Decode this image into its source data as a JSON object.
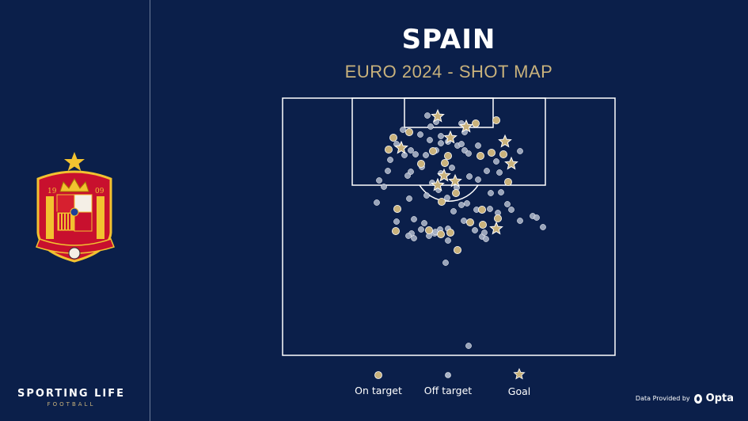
{
  "title": "SPAIN",
  "subtitle": "EURO 2024 - SHOT MAP",
  "branding": {
    "main": "SPORTING LIFE",
    "sub": "FOOTBALL"
  },
  "crest": {
    "year_left": "19",
    "year_right": "09"
  },
  "credit": {
    "prefix": "Data Provided by",
    "brand": "Opta"
  },
  "colors": {
    "background": "#0b1f4a",
    "on_target": "#c9b27c",
    "off_target": "#a9b3c7",
    "goal": "#c9b27c",
    "pitch_lines": "#ffffff"
  },
  "chart_data": {
    "type": "scatter",
    "title": "SPAIN",
    "subtitle": "EURO 2024 - SHOT MAP",
    "xlim": [
      0,
      420
    ],
    "ylim": [
      0,
      325
    ],
    "legend": [
      {
        "key": "on_target",
        "label": "On target",
        "marker": "circle"
      },
      {
        "key": "off_target",
        "label": "Off target",
        "marker": "circle"
      },
      {
        "key": "goal",
        "label": "Goal",
        "marker": "star"
      }
    ],
    "legend_position": "bottom",
    "series": [
      {
        "key": "goal",
        "name": "Goal",
        "points": [
          [
            196,
            23
          ],
          [
            232,
            36
          ],
          [
            212,
            50
          ],
          [
            281,
            55
          ],
          [
            150,
            63
          ],
          [
            289,
            83
          ],
          [
            204,
            98
          ],
          [
            218,
            105
          ],
          [
            196,
            110
          ],
          [
            270,
            165
          ]
        ]
      },
      {
        "key": "on_target",
        "name": "On target",
        "points": [
          [
            160,
            43
          ],
          [
            244,
            32
          ],
          [
            270,
            28
          ],
          [
            140,
            50
          ],
          [
            134,
            65
          ],
          [
            190,
            67
          ],
          [
            205,
            82
          ],
          [
            250,
            73
          ],
          [
            264,
            69
          ],
          [
            279,
            71
          ],
          [
            209,
            73
          ],
          [
            175,
            83
          ],
          [
            285,
            106
          ],
          [
            201,
            131
          ],
          [
            219,
            120
          ],
          [
            145,
            140
          ],
          [
            252,
            141
          ],
          [
            272,
            152
          ],
          [
            237,
            157
          ],
          [
            253,
            160
          ],
          [
            212,
            170
          ],
          [
            200,
            172
          ],
          [
            185,
            167
          ],
          [
            143,
            168
          ],
          [
            221,
            192
          ]
        ]
      },
      {
        "key": "off_target",
        "name": "Off target",
        "points": [
          [
            183,
            22
          ],
          [
            194,
            30
          ],
          [
            187,
            36
          ],
          [
            226,
            32
          ],
          [
            230,
            43
          ],
          [
            152,
            40
          ],
          [
            174,
            46
          ],
          [
            200,
            57
          ],
          [
            209,
            55
          ],
          [
            221,
            60
          ],
          [
            226,
            58
          ],
          [
            230,
            66
          ],
          [
            235,
            70
          ],
          [
            247,
            60
          ],
          [
            144,
            58
          ],
          [
            136,
            78
          ],
          [
            154,
            72
          ],
          [
            162,
            66
          ],
          [
            168,
            71
          ],
          [
            181,
            72
          ],
          [
            186,
            53
          ],
          [
            194,
            66
          ],
          [
            200,
            48
          ],
          [
            162,
            93
          ],
          [
            133,
            92
          ],
          [
            158,
            98
          ],
          [
            122,
            104
          ],
          [
            128,
            112
          ],
          [
            176,
            87
          ],
          [
            189,
            107
          ],
          [
            200,
            95
          ],
          [
            214,
            88
          ],
          [
            236,
            99
          ],
          [
            247,
            103
          ],
          [
            258,
            92
          ],
          [
            270,
            80
          ],
          [
            274,
            94
          ],
          [
            263,
            120
          ],
          [
            276,
            119
          ],
          [
            300,
            67
          ],
          [
            284,
            134
          ],
          [
            220,
            113
          ],
          [
            233,
            133
          ],
          [
            119,
            132
          ],
          [
            160,
            127
          ],
          [
            182,
            123
          ],
          [
            197,
            116
          ],
          [
            208,
            126
          ],
          [
            226,
            135
          ],
          [
            216,
            143
          ],
          [
            245,
            141
          ],
          [
            262,
            140
          ],
          [
            272,
            145
          ],
          [
            289,
            141
          ],
          [
            300,
            155
          ],
          [
            316,
            149
          ],
          [
            321,
            151
          ],
          [
            329,
            163
          ],
          [
            144,
            156
          ],
          [
            166,
            153
          ],
          [
            179,
            158
          ],
          [
            175,
            166
          ],
          [
            163,
            171
          ],
          [
            192,
            171
          ],
          [
            209,
            165
          ],
          [
            209,
            180
          ],
          [
            229,
            155
          ],
          [
            243,
            167
          ],
          [
            252,
            175
          ],
          [
            257,
            178
          ],
          [
            255,
            170
          ],
          [
            159,
            174
          ],
          [
            166,
            177
          ],
          [
            185,
            174
          ],
          [
            193,
            169
          ],
          [
            199,
            166
          ],
          [
            206,
            208
          ],
          [
            235,
            313
          ]
        ]
      }
    ]
  }
}
